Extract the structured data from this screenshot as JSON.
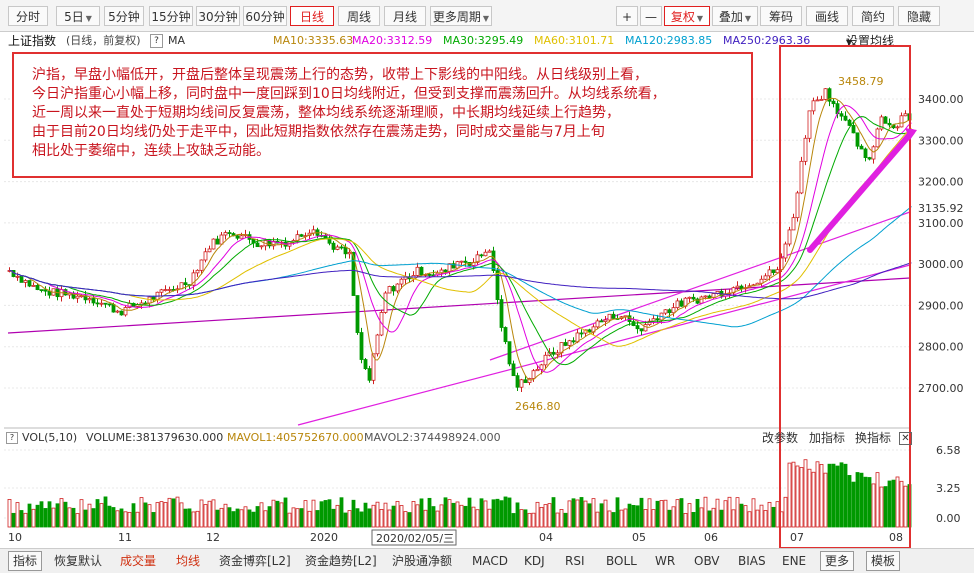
{
  "toolbar": {
    "tabs": [
      "分时",
      "5日",
      "5分钟",
      "15分钟",
      "30分钟",
      "60分钟",
      "日线",
      "周线",
      "月线",
      "更多周期"
    ],
    "right": [
      "+",
      "—",
      "复权",
      "叠加",
      "筹码",
      "画线",
      "简约",
      "隐藏"
    ]
  },
  "info": {
    "index_name": "上证指数",
    "mode": "(日线，前复权)",
    "help": "?",
    "indicator": "MA",
    "ma10": "MA10:3335.63",
    "ma20": "MA20:3312.59",
    "ma30": "MA30:3295.49",
    "ma60": "MA60:3101.71",
    "ma120": "MA120:2983.85",
    "ma250": "MA250:2963.36",
    "settings": "设置均线"
  },
  "annotation": [
    "沪指，早盘小幅低开，开盘后整体呈现震荡上行的态势，收带上下影线的中阳线。从日线级别上看，",
    "今日沪指重心小幅上移，同时盘中一度回踩到10日均线附近，但受到支撑而震荡回升。从均线系统看，",
    "近一周以来一直处于短期均线间反复震荡，整体均线系统逐渐理顺，中长期均线延续上行趋势，",
    "由于目前20日均线仍处于走平中，因此短期指数依然存在震荡走势，同时成交量能与7月上旬",
    "相比处于萎缩中，连续上攻缺乏动能。"
  ],
  "price_axis": [
    "3400.00",
    "3300.00",
    "3200.00",
    "3135.92",
    "3100.00",
    "3000.00",
    "2900.00",
    "2800.00",
    "2700.00"
  ],
  "high_label": "3458.79",
  "low_label": "2646.80",
  "volume": {
    "name": "VOL(5,10)",
    "volume": "VOLUME:381379630.000",
    "mavol1": "MAVOL1:405752670.000",
    "mavol2": "MAVOL2:374498924.000",
    "actions": [
      "改参数",
      "加指标",
      "换指标"
    ],
    "axis": [
      "6.58",
      "3.25",
      "0.00"
    ]
  },
  "x_axis": [
    "10",
    "11",
    "12",
    "2020",
    "04",
    "05",
    "06",
    "07",
    "08"
  ],
  "cursor_date": "2020/02/05/三",
  "bottom": [
    "指标",
    "恢复默认",
    "成交量",
    "均线",
    "资金博弈[L2]",
    "资金趋势[L2]",
    "沪股通净额",
    "MACD",
    "KDJ",
    "RSI",
    "BOLL",
    "WR",
    "OBV",
    "BIAS",
    "ENE",
    "更多",
    "模板"
  ],
  "colors": {
    "ma10": "#b8860b",
    "ma20": "#e000e0",
    "ma30": "#00aa00",
    "ma60": "#e0c000",
    "ma120": "#00a0d0",
    "ma250": "#4020c0",
    "up": "#d02020",
    "down": "#009900",
    "annotation_border": "#e03030",
    "arrow": "#e020e0"
  }
}
